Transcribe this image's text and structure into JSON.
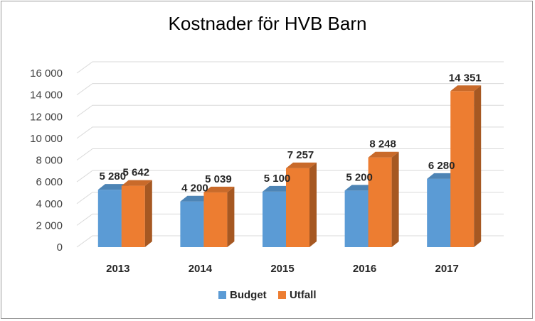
{
  "chart_data": {
    "type": "bar",
    "title": "Kostnader för HVB Barn",
    "categories": [
      "2013",
      "2014",
      "2015",
      "2016",
      "2017"
    ],
    "series": [
      {
        "name": "Budget",
        "values": [
          5280,
          4200,
          5100,
          5200,
          6280
        ],
        "labels": [
          "5 280",
          "4 200",
          "5 100",
          "5 200",
          "6 280"
        ],
        "color": "#5b9bd5"
      },
      {
        "name": "Utfall",
        "values": [
          5642,
          5039,
          7257,
          8248,
          14351
        ],
        "labels": [
          "5 642",
          "5 039",
          "7 257",
          "8 248",
          "14 351"
        ],
        "color": "#ed7d31"
      }
    ],
    "yticks": [
      0,
      2000,
      4000,
      6000,
      8000,
      10000,
      12000,
      14000,
      16000
    ],
    "ytick_labels": [
      "0",
      "2 000",
      "4 000",
      "6 000",
      "8 000",
      "10 000",
      "12 000",
      "14 000",
      "16 000"
    ],
    "ylim": [
      0,
      16000
    ],
    "grid": true,
    "legend_position": "bottom",
    "style": "3d-clustered-column"
  }
}
